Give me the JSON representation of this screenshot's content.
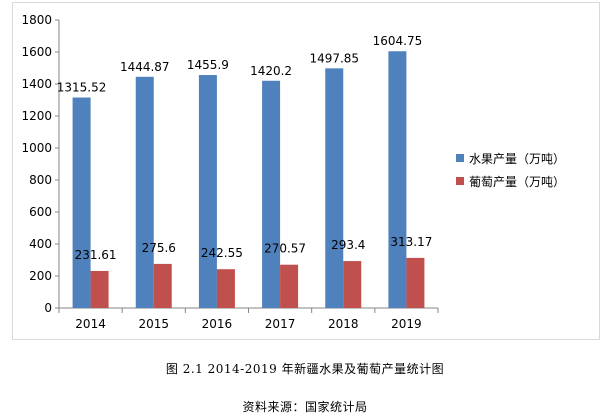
{
  "chart_data": {
    "type": "bar",
    "categories": [
      "2014",
      "2015",
      "2016",
      "2017",
      "2018",
      "2019"
    ],
    "series": [
      {
        "name": "水果产量（万吨）",
        "values": [
          1315.52,
          1444.87,
          1455.9,
          1420.2,
          1497.85,
          1604.75
        ],
        "labels": [
          "1315.52",
          "1444.87",
          "1455.9",
          "1420.2",
          "1497.85",
          "1604.75"
        ],
        "color": "#4f81bd"
      },
      {
        "name": "葡萄产量（万吨）",
        "values": [
          231.61,
          275.6,
          242.55,
          270.57,
          293.4,
          313.17
        ],
        "labels": [
          "231.61",
          "275.6",
          "242.55",
          "270.57",
          "293.4",
          "313.17"
        ],
        "color": "#c0504d"
      }
    ],
    "ylim": [
      0,
      1800
    ],
    "yticks": [
      "0",
      "200",
      "400",
      "600",
      "800",
      "1000",
      "1200",
      "1400",
      "1600",
      "1800"
    ],
    "grid": false,
    "legend": "right"
  },
  "caption": "图 2.1 2014-2019 年新疆水果及葡萄产量统计图",
  "source": "资料来源：国家统计局"
}
